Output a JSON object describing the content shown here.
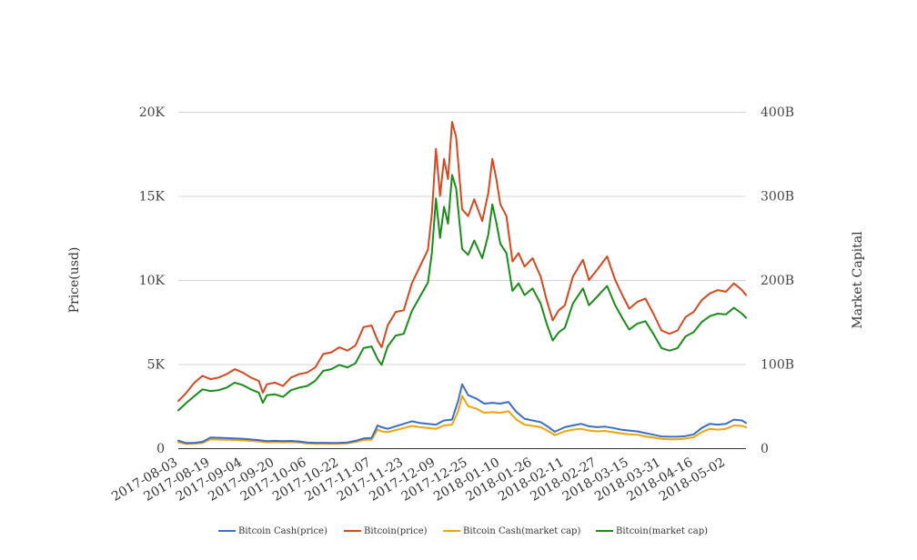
{
  "chart_data": {
    "type": "line",
    "title": "",
    "xlabel": "",
    "ylabel_left": "Price(usd)",
    "ylabel_right": "Market Capital",
    "ylim_left": [
      0,
      20000
    ],
    "ylim_right": [
      0,
      400000000000
    ],
    "yticks_left": [
      "0",
      "5K",
      "10K",
      "15K",
      "20K"
    ],
    "yticks_right": [
      "0",
      "100B",
      "200B",
      "300B",
      "400B"
    ],
    "grid": true,
    "legend_position": "bottom",
    "x_start": "2017-08-03",
    "x_end": "2018-05-12",
    "x_ticks": [
      "2017-08-03",
      "2017-08-19",
      "2017-09-04",
      "2017-09-20",
      "2017-10-06",
      "2017-10-22",
      "2017-11-07",
      "2017-11-23",
      "2017-12-09",
      "2017-12-25",
      "2018-01-10",
      "2018-01-26",
      "2018-02-11",
      "2018-02-27",
      "2018-03-15",
      "2018-03-31",
      "2018-04-16",
      "2018-05-02"
    ],
    "series": [
      {
        "name": "Bitcoin Cash(price)",
        "axis": "left",
        "color": "#3a6fc4",
        "x": [
          "2017-08-03",
          "2017-08-07",
          "2017-08-11",
          "2017-08-15",
          "2017-08-19",
          "2017-08-23",
          "2017-08-27",
          "2017-08-31",
          "2017-09-04",
          "2017-09-08",
          "2017-09-12",
          "2017-09-16",
          "2017-09-20",
          "2017-09-24",
          "2017-09-28",
          "2017-10-02",
          "2017-10-06",
          "2017-10-10",
          "2017-10-14",
          "2017-10-18",
          "2017-10-22",
          "2017-10-26",
          "2017-10-30",
          "2017-11-03",
          "2017-11-07",
          "2017-11-10",
          "2017-11-12",
          "2017-11-15",
          "2017-11-19",
          "2017-11-23",
          "2017-11-27",
          "2017-12-01",
          "2017-12-05",
          "2017-12-09",
          "2017-12-13",
          "2017-12-17",
          "2017-12-20",
          "2017-12-22",
          "2017-12-25",
          "2017-12-29",
          "2018-01-02",
          "2018-01-06",
          "2018-01-10",
          "2018-01-14",
          "2018-01-18",
          "2018-01-22",
          "2018-01-26",
          "2018-01-30",
          "2018-02-03",
          "2018-02-06",
          "2018-02-11",
          "2018-02-15",
          "2018-02-19",
          "2018-02-23",
          "2018-02-27",
          "2018-03-03",
          "2018-03-07",
          "2018-03-11",
          "2018-03-15",
          "2018-03-19",
          "2018-03-23",
          "2018-03-27",
          "2018-03-31",
          "2018-04-04",
          "2018-04-08",
          "2018-04-12",
          "2018-04-16",
          "2018-04-20",
          "2018-04-24",
          "2018-04-28",
          "2018-05-02",
          "2018-05-06",
          "2018-05-10",
          "2018-05-12"
        ],
        "values": [
          450,
          300,
          320,
          380,
          640,
          620,
          600,
          580,
          560,
          520,
          480,
          420,
          440,
          420,
          430,
          400,
          340,
          320,
          320,
          310,
          320,
          340,
          440,
          580,
          610,
          1350,
          1250,
          1150,
          1300,
          1450,
          1600,
          1500,
          1450,
          1400,
          1650,
          1700,
          2800,
          3800,
          3150,
          2950,
          2650,
          2700,
          2650,
          2750,
          2150,
          1750,
          1650,
          1550,
          1250,
          980,
          1250,
          1350,
          1450,
          1300,
          1250,
          1280,
          1200,
          1100,
          1050,
          1000,
          900,
          800,
          700,
          680,
          680,
          720,
          820,
          1200,
          1450,
          1400,
          1450,
          1700,
          1650,
          1500
        ]
      },
      {
        "name": "Bitcoin(price)",
        "axis": "left",
        "color": "#d6481f",
        "x": [
          "2017-08-03",
          "2017-08-07",
          "2017-08-11",
          "2017-08-15",
          "2017-08-19",
          "2017-08-23",
          "2017-08-27",
          "2017-08-31",
          "2017-09-04",
          "2017-09-08",
          "2017-09-12",
          "2017-09-14",
          "2017-09-16",
          "2017-09-20",
          "2017-09-24",
          "2017-09-28",
          "2017-10-02",
          "2017-10-06",
          "2017-10-10",
          "2017-10-14",
          "2017-10-18",
          "2017-10-22",
          "2017-10-26",
          "2017-10-30",
          "2017-11-03",
          "2017-11-07",
          "2017-11-10",
          "2017-11-12",
          "2017-11-15",
          "2017-11-19",
          "2017-11-23",
          "2017-11-27",
          "2017-12-01",
          "2017-12-05",
          "2017-12-07",
          "2017-12-09",
          "2017-12-11",
          "2017-12-13",
          "2017-12-15",
          "2017-12-17",
          "2017-12-19",
          "2017-12-22",
          "2017-12-25",
          "2017-12-28",
          "2018-01-01",
          "2018-01-04",
          "2018-01-06",
          "2018-01-08",
          "2018-01-10",
          "2018-01-13",
          "2018-01-16",
          "2018-01-19",
          "2018-01-22",
          "2018-01-26",
          "2018-01-30",
          "2018-02-02",
          "2018-02-05",
          "2018-02-08",
          "2018-02-11",
          "2018-02-15",
          "2018-02-20",
          "2018-02-23",
          "2018-02-27",
          "2018-03-04",
          "2018-03-08",
          "2018-03-12",
          "2018-03-15",
          "2018-03-19",
          "2018-03-23",
          "2018-03-27",
          "2018-03-31",
          "2018-04-04",
          "2018-04-08",
          "2018-04-12",
          "2018-04-16",
          "2018-04-20",
          "2018-04-24",
          "2018-04-28",
          "2018-05-02",
          "2018-05-06",
          "2018-05-10",
          "2018-05-12"
        ],
        "values": [
          2800,
          3300,
          3900,
          4300,
          4100,
          4200,
          4400,
          4700,
          4500,
          4200,
          4000,
          3300,
          3800,
          3900,
          3700,
          4200,
          4400,
          4500,
          4800,
          5600,
          5700,
          6000,
          5800,
          6100,
          7200,
          7300,
          6400,
          6000,
          7300,
          8100,
          8200,
          9800,
          10800,
          11800,
          14000,
          17800,
          15000,
          17200,
          16000,
          19400,
          18500,
          14200,
          13800,
          14800,
          13500,
          15200,
          17200,
          16000,
          14500,
          13800,
          11100,
          11600,
          10800,
          11300,
          10200,
          8800,
          7600,
          8200,
          8500,
          10200,
          11200,
          10000,
          10600,
          11400,
          10000,
          9000,
          8300,
          8700,
          8900,
          8000,
          7000,
          6800,
          7000,
          7800,
          8100,
          8800,
          9200,
          9400,
          9300,
          9800,
          9400,
          9100
        ]
      },
      {
        "name": "Bitcoin Cash(market cap)",
        "axis": "right",
        "color": "#f0a30a",
        "x": [
          "2017-08-03",
          "2017-08-07",
          "2017-08-11",
          "2017-08-15",
          "2017-08-19",
          "2017-08-23",
          "2017-08-27",
          "2017-08-31",
          "2017-09-04",
          "2017-09-08",
          "2017-09-12",
          "2017-09-16",
          "2017-09-20",
          "2017-09-24",
          "2017-09-28",
          "2017-10-02",
          "2017-10-06",
          "2017-10-10",
          "2017-10-14",
          "2017-10-18",
          "2017-10-22",
          "2017-10-26",
          "2017-10-30",
          "2017-11-03",
          "2017-11-07",
          "2017-11-10",
          "2017-11-12",
          "2017-11-15",
          "2017-11-19",
          "2017-11-23",
          "2017-11-27",
          "2017-12-01",
          "2017-12-05",
          "2017-12-09",
          "2017-12-13",
          "2017-12-17",
          "2017-12-20",
          "2017-12-22",
          "2017-12-25",
          "2017-12-29",
          "2018-01-02",
          "2018-01-06",
          "2018-01-10",
          "2018-01-14",
          "2018-01-18",
          "2018-01-22",
          "2018-01-26",
          "2018-01-30",
          "2018-02-03",
          "2018-02-06",
          "2018-02-11",
          "2018-02-15",
          "2018-02-19",
          "2018-02-23",
          "2018-02-27",
          "2018-03-03",
          "2018-03-07",
          "2018-03-11",
          "2018-03-15",
          "2018-03-19",
          "2018-03-23",
          "2018-03-27",
          "2018-03-31",
          "2018-04-04",
          "2018-04-08",
          "2018-04-12",
          "2018-04-16",
          "2018-04-20",
          "2018-04-24",
          "2018-04-28",
          "2018-05-02",
          "2018-05-06",
          "2018-05-10",
          "2018-05-12"
        ],
        "values": [
          7000000000,
          5000000000,
          5400000000,
          6300000000,
          10600000000,
          10300000000,
          10000000000,
          9700000000,
          9300000000,
          8700000000,
          8000000000,
          7000000000,
          7300000000,
          7000000000,
          7200000000,
          6700000000,
          5700000000,
          5300000000,
          5300000000,
          5200000000,
          5300000000,
          5700000000,
          7300000000,
          9700000000,
          10200000000,
          22000000000,
          20000000000,
          19000000000,
          21500000000,
          24000000000,
          26500000000,
          25000000000,
          24000000000,
          23000000000,
          27000000000,
          28000000000,
          44000000000,
          62000000000,
          50000000000,
          47000000000,
          42000000000,
          43000000000,
          42000000000,
          44000000000,
          34000000000,
          28000000000,
          26500000000,
          25000000000,
          20000000000,
          15500000000,
          20000000000,
          22000000000,
          23000000000,
          21000000000,
          20000000000,
          20500000000,
          19000000000,
          17500000000,
          16500000000,
          16000000000,
          14000000000,
          12500000000,
          11000000000,
          10500000000,
          10500000000,
          11500000000,
          13000000000,
          19000000000,
          23000000000,
          22000000000,
          23000000000,
          27000000000,
          26500000000,
          25000000000
        ]
      },
      {
        "name": "Bitcoin(market cap)",
        "axis": "right",
        "color": "#1a8c1a",
        "x": [
          "2017-08-03",
          "2017-08-07",
          "2017-08-11",
          "2017-08-15",
          "2017-08-19",
          "2017-08-23",
          "2017-08-27",
          "2017-08-31",
          "2017-09-04",
          "2017-09-08",
          "2017-09-12",
          "2017-09-14",
          "2017-09-16",
          "2017-09-20",
          "2017-09-24",
          "2017-09-28",
          "2017-10-02",
          "2017-10-06",
          "2017-10-10",
          "2017-10-14",
          "2017-10-18",
          "2017-10-22",
          "2017-10-26",
          "2017-10-30",
          "2017-11-03",
          "2017-11-07",
          "2017-11-10",
          "2017-11-12",
          "2017-11-15",
          "2017-11-19",
          "2017-11-23",
          "2017-11-27",
          "2017-12-01",
          "2017-12-05",
          "2017-12-07",
          "2017-12-09",
          "2017-12-11",
          "2017-12-13",
          "2017-12-15",
          "2017-12-17",
          "2017-12-19",
          "2017-12-22",
          "2017-12-25",
          "2017-12-28",
          "2018-01-01",
          "2018-01-04",
          "2018-01-06",
          "2018-01-08",
          "2018-01-10",
          "2018-01-13",
          "2018-01-16",
          "2018-01-19",
          "2018-01-22",
          "2018-01-26",
          "2018-01-30",
          "2018-02-02",
          "2018-02-05",
          "2018-02-08",
          "2018-02-11",
          "2018-02-15",
          "2018-02-20",
          "2018-02-23",
          "2018-02-27",
          "2018-03-04",
          "2018-03-08",
          "2018-03-12",
          "2018-03-15",
          "2018-03-19",
          "2018-03-23",
          "2018-03-27",
          "2018-03-31",
          "2018-04-04",
          "2018-04-08",
          "2018-04-12",
          "2018-04-16",
          "2018-04-20",
          "2018-04-24",
          "2018-04-28",
          "2018-05-02",
          "2018-05-06",
          "2018-05-10",
          "2018-05-12"
        ],
        "values": [
          45000000000,
          54000000000,
          62000000000,
          70000000000,
          68000000000,
          69000000000,
          72000000000,
          78000000000,
          75000000000,
          70000000000,
          66000000000,
          54000000000,
          63000000000,
          64000000000,
          61000000000,
          69000000000,
          72000000000,
          74000000000,
          80000000000,
          92000000000,
          94000000000,
          99000000000,
          96000000000,
          101000000000,
          119000000000,
          121000000000,
          106000000000,
          99000000000,
          121000000000,
          134000000000,
          136000000000,
          163000000000,
          180000000000,
          197000000000,
          233000000000,
          297000000000,
          250000000000,
          287000000000,
          267000000000,
          325000000000,
          309000000000,
          237000000000,
          230000000000,
          247000000000,
          226000000000,
          254000000000,
          290000000000,
          268000000000,
          243000000000,
          232000000000,
          187000000000,
          196000000000,
          182000000000,
          190000000000,
          172000000000,
          148000000000,
          128000000000,
          138000000000,
          143000000000,
          172000000000,
          190000000000,
          170000000000,
          180000000000,
          193000000000,
          170000000000,
          153000000000,
          141000000000,
          148000000000,
          151000000000,
          136000000000,
          119000000000,
          116000000000,
          119000000000,
          133000000000,
          138000000000,
          150000000000,
          157000000000,
          160000000000,
          159000000000,
          167000000000,
          160000000000,
          155000000000
        ]
      }
    ]
  }
}
